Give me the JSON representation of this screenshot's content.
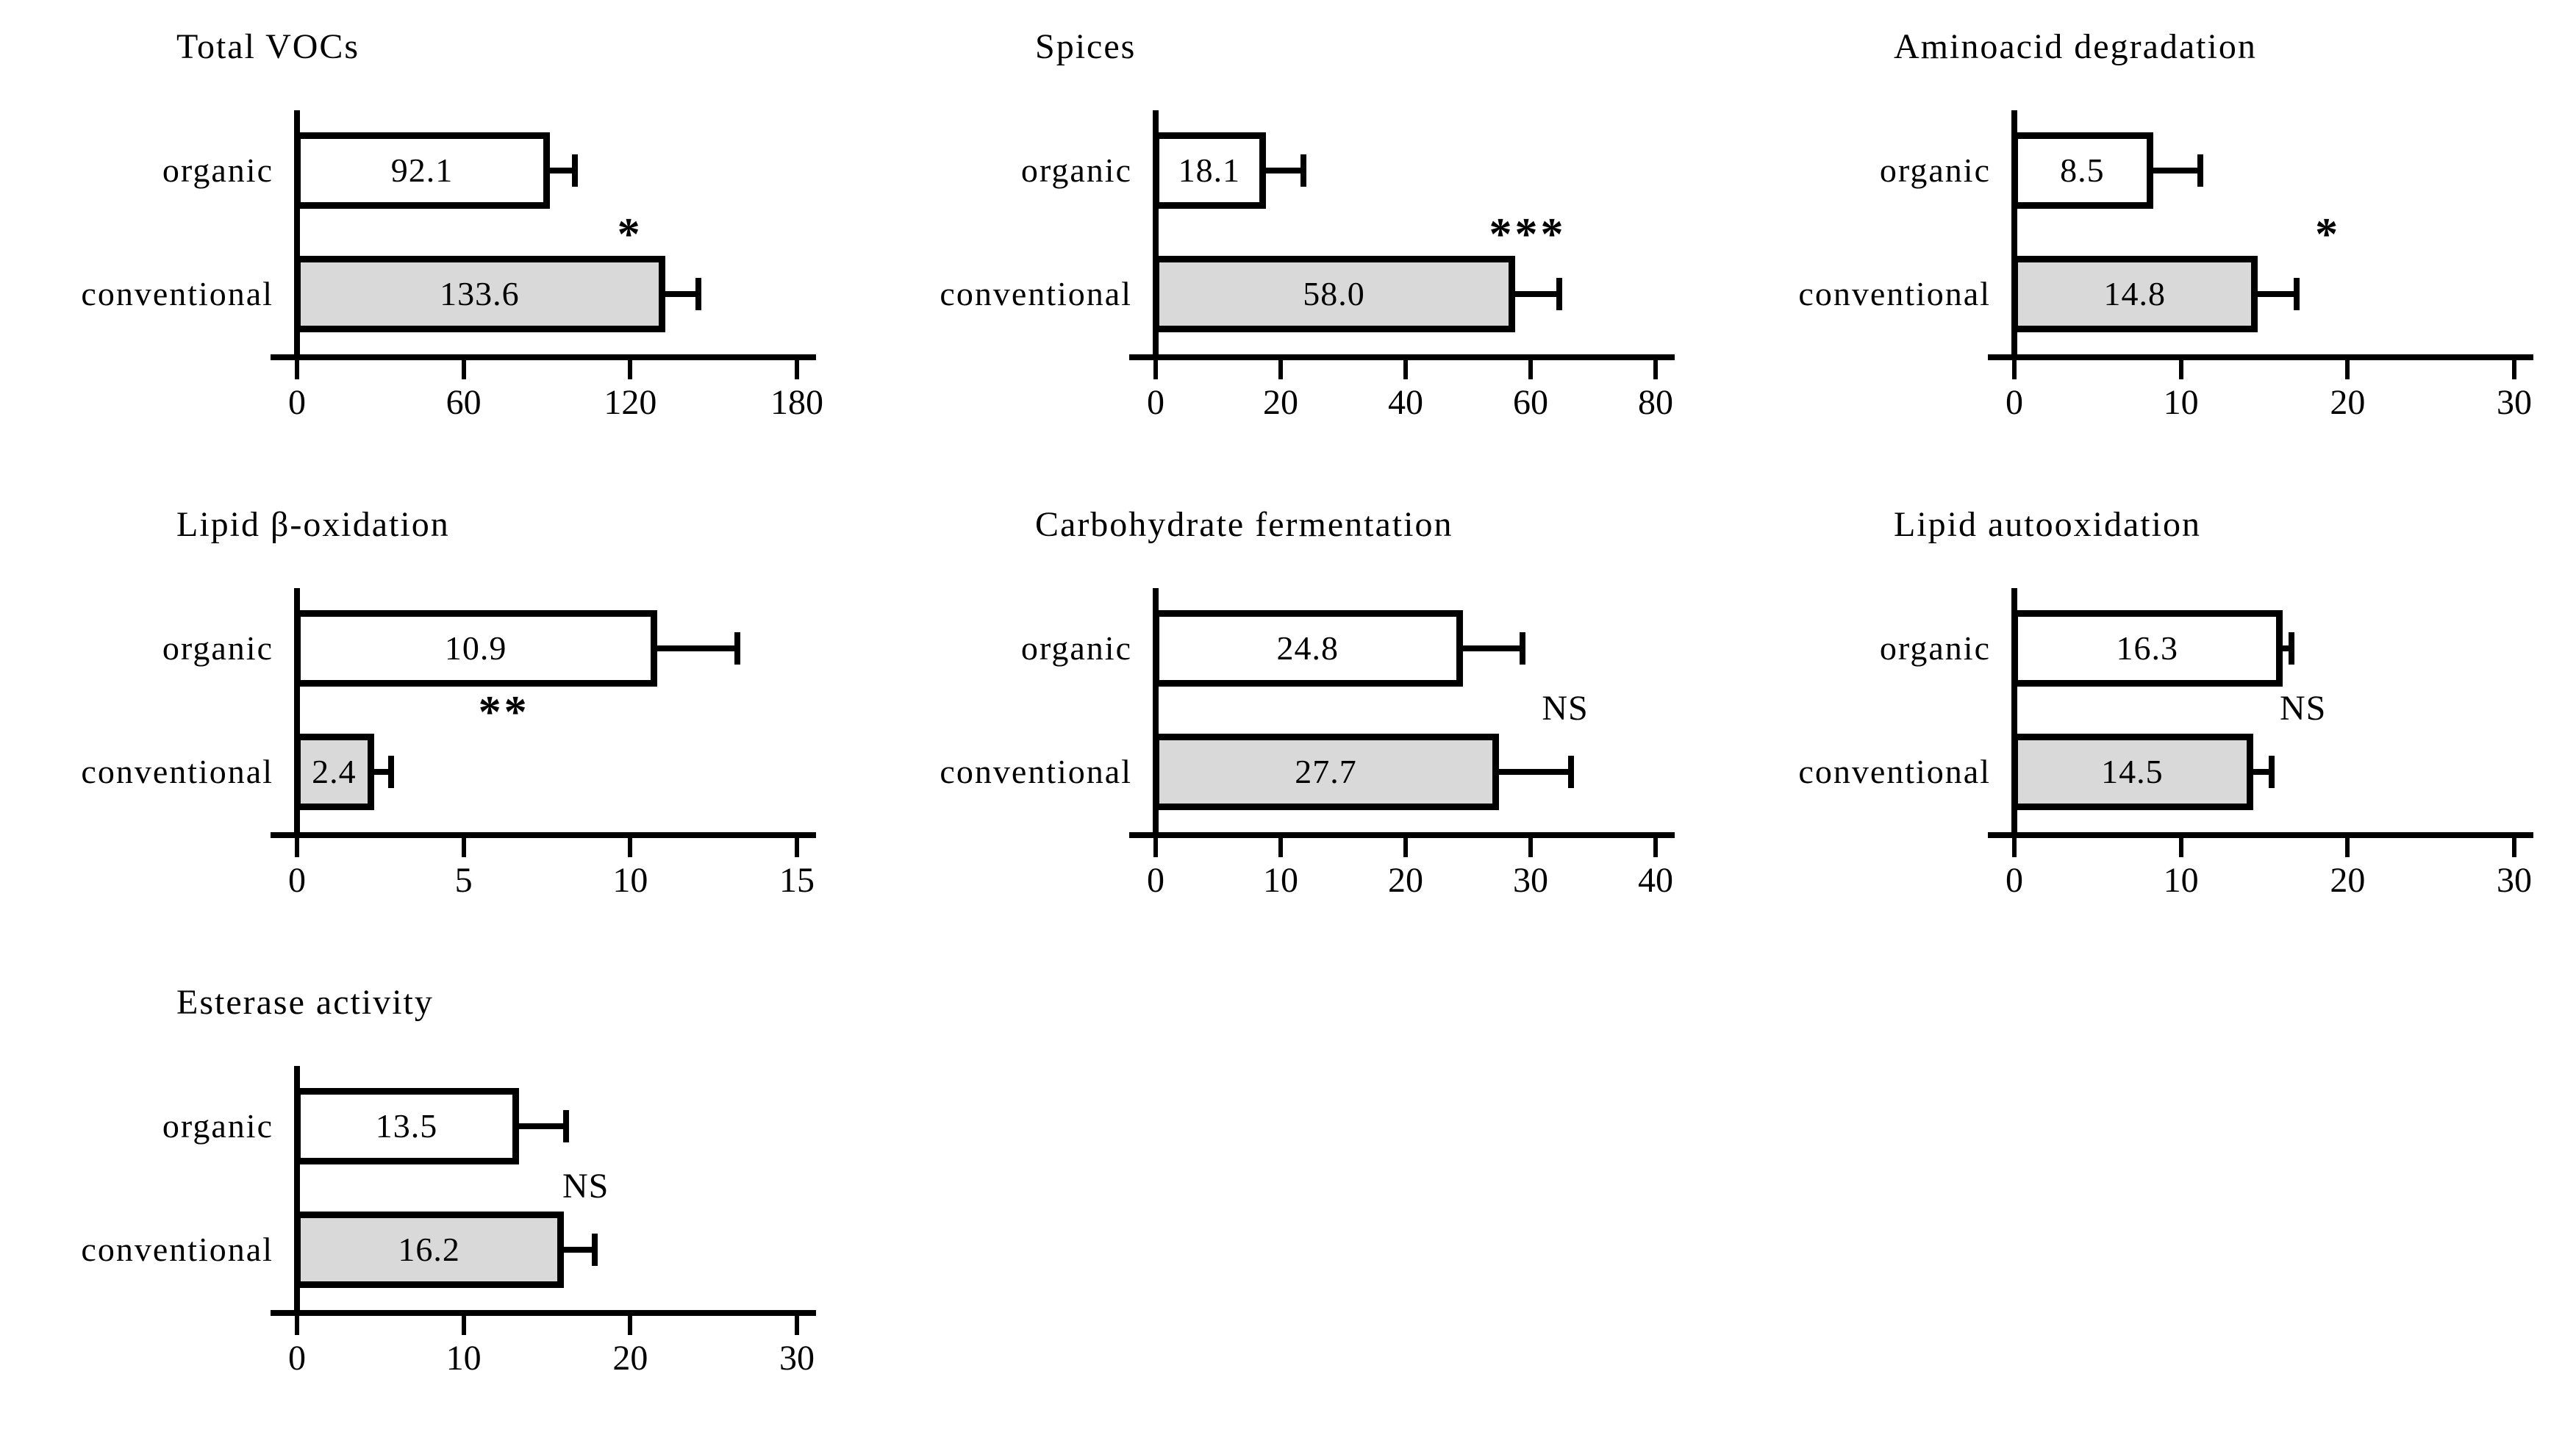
{
  "figure": {
    "background": "#ffffff",
    "colors": {
      "organic_fill": "#ffffff",
      "conventional_fill": "#d9d9d9",
      "bar_border": "#000000",
      "axis": "#000000",
      "text": "#000000"
    }
  },
  "chart_data": [
    {
      "type": "bar",
      "orientation": "horizontal",
      "title": "Total VOCs",
      "categories": [
        "organic",
        "conventional"
      ],
      "values": [
        92.1,
        133.6
      ],
      "value_labels": [
        "92.1",
        "133.6"
      ],
      "errors_plus": [
        10,
        13
      ],
      "xlim": [
        0,
        180
      ],
      "xticks": [
        0,
        60,
        120,
        180
      ],
      "significance": "*",
      "sig_x": 121,
      "grid": false,
      "legend": "none"
    },
    {
      "type": "bar",
      "orientation": "horizontal",
      "title": "Spices",
      "categories": [
        "organic",
        "conventional"
      ],
      "values": [
        18.1,
        58.0
      ],
      "value_labels": [
        "18.1",
        "58.0"
      ],
      "errors_plus": [
        6.5,
        7.5
      ],
      "xlim": [
        0,
        80
      ],
      "xticks": [
        0,
        20,
        40,
        60,
        80
      ],
      "significance": "***",
      "sig_x": 60,
      "grid": false,
      "legend": "none"
    },
    {
      "type": "bar",
      "orientation": "horizontal",
      "title": "Aminoacid degradation",
      "categories": [
        "organic",
        "conventional"
      ],
      "values": [
        8.5,
        14.8
      ],
      "value_labels": [
        "8.5",
        "14.8"
      ],
      "errors_plus": [
        3,
        2.5
      ],
      "xlim": [
        0,
        30
      ],
      "xticks": [
        0,
        10,
        20,
        30
      ],
      "significance": "*",
      "sig_x": 19,
      "grid": false,
      "legend": "none"
    },
    {
      "type": "bar",
      "orientation": "horizontal",
      "title": "Lipid β-oxidation",
      "categories": [
        "organic",
        "conventional"
      ],
      "values": [
        10.9,
        2.4
      ],
      "value_labels": [
        "10.9",
        "2.4"
      ],
      "errors_plus": [
        2.5,
        0.6
      ],
      "xlim": [
        0,
        15
      ],
      "xticks": [
        0,
        5,
        10,
        15
      ],
      "significance": "**",
      "sig_x": 6.3,
      "grid": false,
      "legend": "none"
    },
    {
      "type": "bar",
      "orientation": "horizontal",
      "title": "Carbohydrate fermentation",
      "categories": [
        "organic",
        "conventional"
      ],
      "values": [
        24.8,
        27.7
      ],
      "value_labels": [
        "24.8",
        "27.7"
      ],
      "errors_plus": [
        5,
        6
      ],
      "xlim": [
        0,
        40
      ],
      "xticks": [
        0,
        10,
        20,
        30,
        40
      ],
      "significance": "NS",
      "sig_x": 33,
      "grid": false,
      "legend": "none"
    },
    {
      "type": "bar",
      "orientation": "horizontal",
      "title": "Lipid autooxidation",
      "categories": [
        "organic",
        "conventional"
      ],
      "values": [
        16.3,
        14.5
      ],
      "value_labels": [
        "16.3",
        "14.5"
      ],
      "errors_plus": [
        0.7,
        1.3
      ],
      "xlim": [
        0,
        30
      ],
      "xticks": [
        0,
        10,
        20,
        30
      ],
      "significance": "NS",
      "sig_x": 17.5,
      "grid": false,
      "legend": "none"
    },
    {
      "type": "bar",
      "orientation": "horizontal",
      "title": "Esterase activity",
      "categories": [
        "organic",
        "conventional"
      ],
      "values": [
        13.5,
        16.2
      ],
      "value_labels": [
        "13.5",
        "16.2"
      ],
      "errors_plus": [
        3,
        2
      ],
      "xlim": [
        0,
        30
      ],
      "xticks": [
        0,
        10,
        20,
        30
      ],
      "significance": "NS",
      "sig_x": 17.5,
      "grid": false,
      "legend": "none"
    }
  ]
}
